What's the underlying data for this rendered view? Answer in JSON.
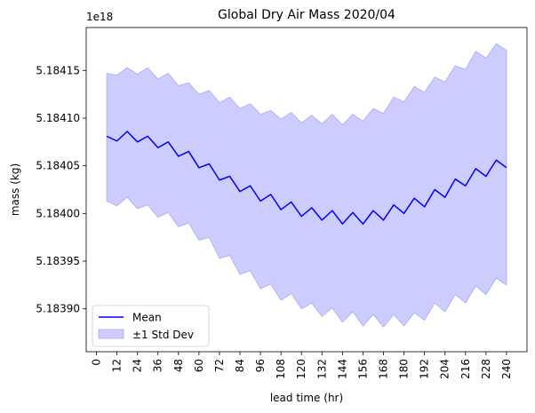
{
  "chart_data": {
    "type": "line",
    "title": "Global Dry Air Mass 2020/04",
    "xlabel": "lead time (hr)",
    "ylabel": "mass (kg)",
    "offset_label": "1e18",
    "y_scale": 1e+18,
    "xlim": [
      -6,
      252
    ],
    "ylim": [
      5.183855,
      5.184195
    ],
    "x_ticks": [
      0,
      12,
      24,
      36,
      48,
      60,
      72,
      84,
      96,
      108,
      120,
      132,
      144,
      156,
      168,
      180,
      192,
      204,
      216,
      228,
      240
    ],
    "y_ticks": [
      5.1839,
      5.18395,
      5.184,
      5.18405,
      5.1841,
      5.18415
    ],
    "y_tick_labels": [
      "5.18390",
      "5.18395",
      "5.18400",
      "5.18405",
      "5.18410",
      "5.18415"
    ],
    "grid": false,
    "legend": {
      "position": "lower-left",
      "entries": [
        "Mean",
        "±1 Std Dev"
      ]
    },
    "colors": {
      "line": "#0000ff",
      "band": "#ccccff",
      "band_edge": "#aaaaee"
    },
    "x": [
      6,
      12,
      18,
      24,
      30,
      36,
      42,
      48,
      54,
      60,
      66,
      72,
      78,
      84,
      90,
      96,
      102,
      108,
      114,
      120,
      126,
      132,
      138,
      144,
      150,
      156,
      162,
      168,
      174,
      180,
      186,
      192,
      198,
      204,
      210,
      216,
      222,
      228,
      234,
      240
    ],
    "series": [
      {
        "name": "Mean",
        "values": [
          5.184081,
          5.184076,
          5.184086,
          5.184075,
          5.184081,
          5.184069,
          5.184075,
          5.18406,
          5.184065,
          5.184048,
          5.184052,
          5.184035,
          5.184039,
          5.184023,
          5.184029,
          5.184013,
          5.18402,
          5.184004,
          5.184012,
          5.183997,
          5.184006,
          5.183993,
          5.184003,
          5.183989,
          5.184001,
          5.183989,
          5.184003,
          5.183993,
          5.184009,
          5.184,
          5.184016,
          5.184007,
          5.184025,
          5.184017,
          5.184036,
          5.184029,
          5.184047,
          5.184039,
          5.184056,
          5.184048
        ]
      },
      {
        "name": "±1 Std Dev",
        "upper": [
          5.184147,
          5.184145,
          5.184153,
          5.184146,
          5.184153,
          5.184141,
          5.184147,
          5.184134,
          5.184137,
          5.184125,
          5.184129,
          5.184116,
          5.184122,
          5.18411,
          5.184115,
          5.184104,
          5.184108,
          5.184099,
          5.184106,
          5.184095,
          5.184103,
          5.184094,
          5.184104,
          5.184093,
          5.184104,
          5.184097,
          5.18411,
          5.184105,
          5.184122,
          5.184117,
          5.184133,
          5.184127,
          5.184143,
          5.184138,
          5.184155,
          5.184151,
          5.18417,
          5.184163,
          5.184178,
          5.184171
        ],
        "lower": [
          5.184013,
          5.184008,
          5.184017,
          5.184005,
          5.184009,
          5.183996,
          5.184001,
          5.183986,
          5.18399,
          5.183972,
          5.183975,
          5.183953,
          5.183956,
          5.183936,
          5.18394,
          5.183921,
          5.183926,
          5.183909,
          5.183916,
          5.1839,
          5.183906,
          5.183892,
          5.183901,
          5.183886,
          5.183897,
          5.183882,
          5.183894,
          5.183881,
          5.183894,
          5.183882,
          5.183896,
          5.183888,
          5.183906,
          5.183897,
          5.183915,
          5.183906,
          5.183924,
          5.183915,
          5.183932,
          5.183925
        ]
      }
    ]
  }
}
